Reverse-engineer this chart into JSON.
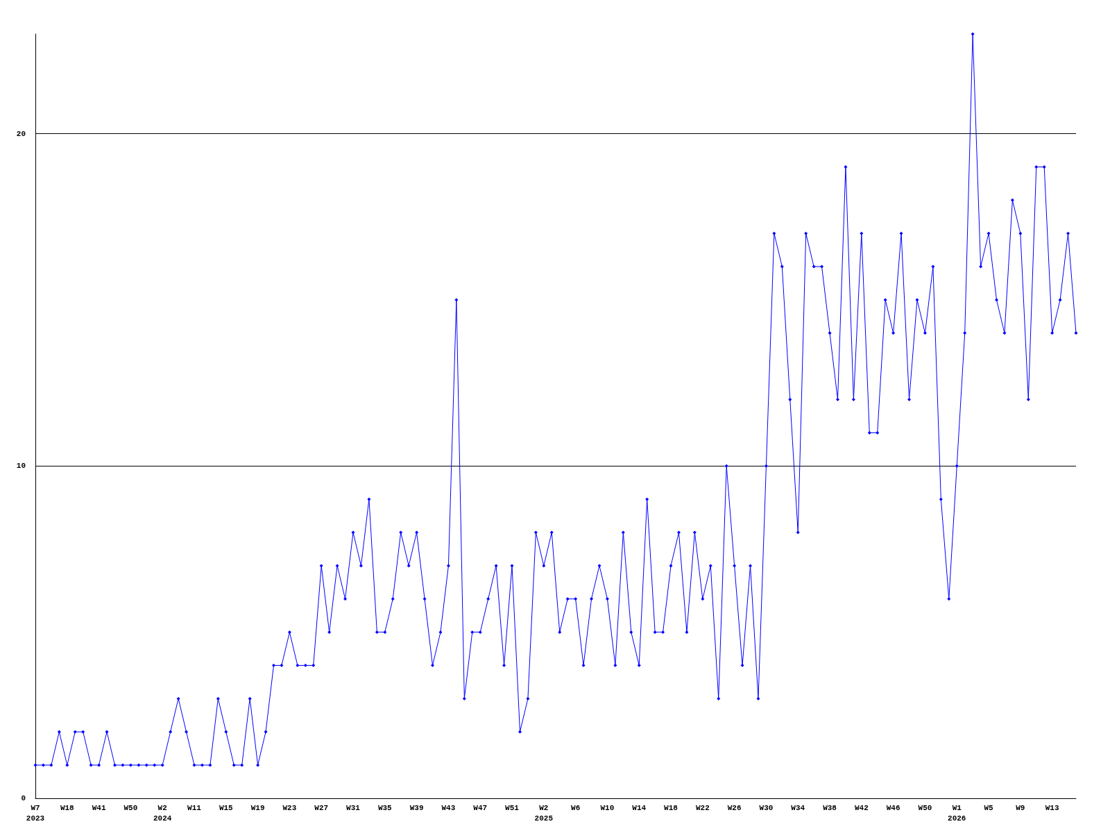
{
  "chart_data": {
    "type": "line",
    "categories": [
      "W7\n2023",
      null,
      null,
      null,
      "W18",
      null,
      null,
      null,
      "W41",
      null,
      null,
      null,
      "W50",
      null,
      null,
      null,
      "W2\n2024",
      null,
      null,
      null,
      "W11",
      null,
      null,
      null,
      "W15",
      null,
      null,
      null,
      "W19",
      null,
      null,
      null,
      "W23",
      null,
      null,
      null,
      "W27",
      null,
      null,
      null,
      "W31",
      null,
      null,
      null,
      "W35",
      null,
      null,
      null,
      "W39",
      null,
      null,
      null,
      "W43",
      null,
      null,
      null,
      "W47",
      null,
      null,
      null,
      "W51",
      null,
      null,
      null,
      "W2\n2025",
      null,
      null,
      null,
      "W6",
      null,
      null,
      null,
      "W10",
      null,
      null,
      null,
      "W14",
      null,
      null,
      null,
      "W18",
      null,
      null,
      null,
      "W22",
      null,
      null,
      null,
      "W26",
      null,
      null,
      null,
      "W30",
      null,
      null,
      null,
      "W34",
      null,
      null,
      null,
      "W38",
      null,
      null,
      null,
      "W42",
      null,
      null,
      null,
      "W46",
      null,
      null,
      null,
      "W50",
      null,
      null,
      null,
      "W1\n2026",
      null,
      null,
      null,
      "W5",
      null,
      null,
      null,
      "W9",
      null,
      null,
      null,
      "W13",
      null,
      null,
      null
    ],
    "series": [
      {
        "color": "#0000ff",
        "values": [
          1,
          1,
          1,
          2,
          1,
          2,
          2,
          1,
          1,
          2,
          1,
          1,
          1,
          1,
          1,
          1,
          1,
          2,
          3,
          2,
          1,
          1,
          1,
          3,
          2,
          1,
          1,
          3,
          1,
          2,
          4,
          4,
          5,
          4,
          4,
          4,
          7,
          5,
          7,
          6,
          8,
          7,
          9,
          5,
          5,
          6,
          8,
          7,
          8,
          6,
          4,
          5,
          7,
          15,
          3,
          5,
          5,
          6,
          7,
          4,
          7,
          2,
          3,
          8,
          7,
          8,
          5,
          6,
          6,
          4,
          6,
          7,
          6,
          4,
          8,
          5,
          4,
          9,
          5,
          5,
          7,
          8,
          5,
          8,
          6,
          7,
          3,
          10,
          7,
          4,
          7,
          3,
          10,
          17,
          16,
          12,
          8,
          17,
          16,
          16,
          14,
          12,
          19,
          12,
          17,
          11,
          11,
          15,
          14,
          17,
          12,
          15,
          14,
          16,
          9,
          6,
          10,
          14,
          23,
          16,
          17,
          15,
          14,
          18,
          17,
          12,
          19,
          19,
          14,
          15,
          17,
          14
        ]
      }
    ],
    "ylim": [
      0,
      23
    ],
    "yticks": [
      0,
      10,
      20
    ],
    "grid": "y",
    "marker": "diamond",
    "line_style": "solid"
  }
}
